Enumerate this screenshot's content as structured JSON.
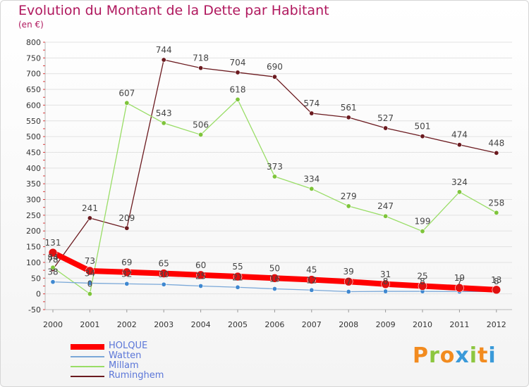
{
  "title": "Evolution du Montant de la Dette par Habitant",
  "subtitle": "(en €)",
  "logo": {
    "text": "Proxiti",
    "letter_colors": [
      "#f28b1f",
      "#8cc63f",
      "#f28b1f",
      "#3a9ad9",
      "#8cc63f",
      "#f28b1f",
      "#3a9ad9"
    ]
  },
  "chart_data": {
    "type": "line",
    "title": "Evolution du Montant de la Dette par Habitant",
    "ylabel": "(en €)",
    "xlabel": "",
    "x": [
      "2000",
      "2001",
      "2002",
      "2003",
      "2004",
      "2005",
      "2006",
      "2007",
      "2008",
      "2009",
      "2010",
      "2011",
      "2012"
    ],
    "ylim": [
      -50,
      800
    ],
    "yticks": [
      -50,
      0,
      50,
      100,
      150,
      200,
      250,
      300,
      350,
      400,
      450,
      500,
      550,
      600,
      650,
      700,
      750,
      800
    ],
    "grid": "horizontal",
    "legend_position": "bottom-left",
    "series": [
      {
        "name": "Ruminghem",
        "color": "#6b1a1f",
        "marker": "#6b1a1f",
        "width": 1.3,
        "values": [
          78,
          241,
          209,
          744,
          718,
          704,
          690,
          574,
          561,
          527,
          501,
          474,
          448
        ],
        "labels": [
          "78",
          "241",
          "209",
          "744",
          "718",
          "704",
          "690",
          "574",
          "561",
          "527",
          "501",
          "474",
          "448"
        ]
      },
      {
        "name": "Millam",
        "color": "#99dd66",
        "marker": "#7ec43a",
        "width": 1.3,
        "values": [
          84,
          0,
          607,
          543,
          506,
          618,
          373,
          334,
          279,
          247,
          199,
          324,
          258
        ],
        "labels": [
          "84",
          "0",
          "607",
          "543",
          "506",
          "618",
          "373",
          "334",
          "279",
          "247",
          "199",
          "324",
          "258"
        ]
      },
      {
        "name": "Watten",
        "color": "#7aa8d8",
        "marker": "#3f88d0",
        "width": 1.3,
        "values": [
          38,
          34,
          32,
          30,
          25,
          21,
          16,
          12,
          7,
          8,
          8,
          7,
          8
        ],
        "labels": [
          "38",
          "34",
          "32",
          "30",
          "25",
          "21",
          "16",
          "12",
          "7",
          "8",
          "8",
          "7",
          "8"
        ]
      },
      {
        "name": "HOLQUE",
        "color": "#ff0000",
        "marker": "#e01010",
        "width": 8,
        "values": [
          131,
          73,
          69,
          65,
          60,
          55,
          50,
          45,
          39,
          31,
          25,
          19,
          13
        ],
        "labels": [
          "131",
          "73",
          "69",
          "65",
          "60",
          "55",
          "50",
          "45",
          "39",
          "31",
          "25",
          "19",
          "13"
        ]
      }
    ],
    "legend_order": [
      "HOLQUE",
      "Watten",
      "Millam",
      "Ruminghem"
    ]
  }
}
